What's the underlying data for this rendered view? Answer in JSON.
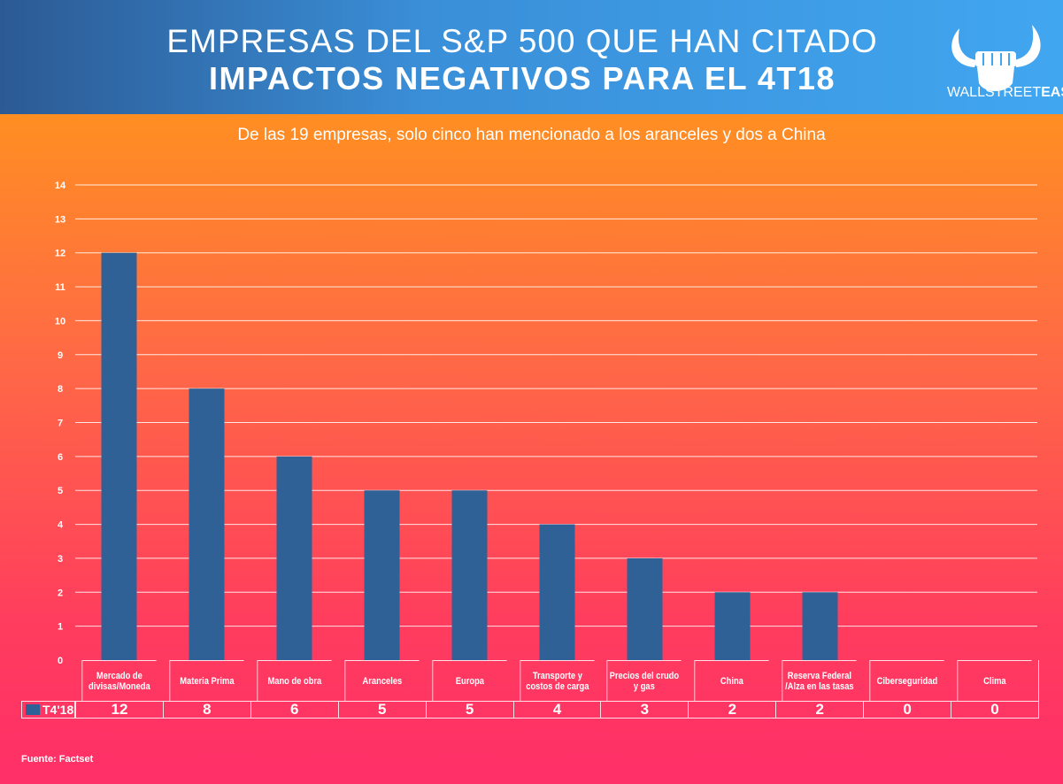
{
  "header": {
    "title_line1": "EMPRESAS DEL S&P 500 QUE HAN CITADO",
    "title_line2": "IMPACTOS NEGATIVOS PARA EL 4T18",
    "logo_text_light": "WALLSTREET",
    "logo_text_bold": "EASY"
  },
  "source": "Fuente: Factset",
  "chart_data": {
    "type": "bar",
    "title": "EMPRESAS DEL S&P 500 QUE HAN CITADO IMPACTOS NEGATIVOS PARA EL 4T18",
    "subtitle": "De las 19 empresas, solo cinco han mencionado a los aranceles y dos a China",
    "categories": [
      "Mercado de divisas/Moneda",
      "Materia Prima",
      "Mano de obra",
      "Aranceles",
      "Europa",
      "Transporte y costos de carga",
      "Precios del crudo y gas",
      "China",
      "Reserva Federal /Alza en las tasas",
      "Ciberseguridad",
      "Clima"
    ],
    "series": [
      {
        "name": "T4'18",
        "values": [
          12,
          8,
          6,
          5,
          5,
          4,
          3,
          2,
          2,
          0,
          0
        ],
        "color": "#2f6196"
      }
    ],
    "ylim": [
      0,
      14
    ],
    "yticks": [
      "0",
      "1",
      "2",
      "3",
      "4",
      "5",
      "6",
      "7",
      "8",
      "9",
      "10",
      "11",
      "12",
      "13",
      "14"
    ],
    "grid": true,
    "legend": "bottom-left data table"
  }
}
